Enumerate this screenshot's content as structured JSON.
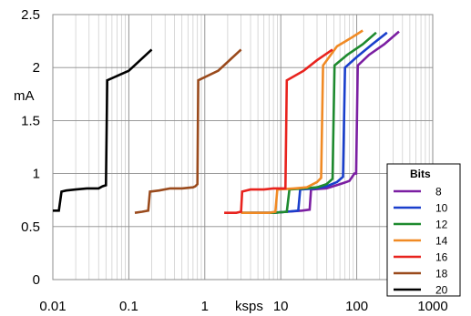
{
  "chart_data": {
    "type": "line",
    "xlabel": "ksps",
    "ylabel": "mA",
    "xscale": "log",
    "xlim": [
      0.01,
      1000
    ],
    "ylim": [
      0,
      2.5
    ],
    "x_ticks": [
      0.01,
      0.1,
      1,
      10,
      100,
      1000
    ],
    "x_tick_labels": [
      "0.01",
      "0.1",
      "1",
      "10",
      "100",
      "1000"
    ],
    "y_ticks": [
      0,
      0.5,
      1,
      1.5,
      2,
      2.5
    ],
    "y_tick_labels": [
      "0",
      "0.5",
      "1",
      "1.5",
      "2",
      "2.5"
    ],
    "grid": true,
    "legend": {
      "title": "Bits",
      "position": "bottom-right"
    },
    "series": [
      {
        "name": "8",
        "color": "#7b1fa2",
        "points": [
          [
            4,
            0.63
          ],
          [
            8,
            0.63
          ],
          [
            12,
            0.64
          ],
          [
            19,
            0.65
          ],
          [
            24,
            0.66
          ],
          [
            25,
            0.85
          ],
          [
            40,
            0.86
          ],
          [
            60,
            0.9
          ],
          [
            80,
            0.93
          ],
          [
            93,
            1.0
          ],
          [
            98,
            1.0
          ],
          [
            103,
            2.02
          ],
          [
            145,
            2.12
          ],
          [
            230,
            2.22
          ],
          [
            360,
            2.34
          ]
        ]
      },
      {
        "name": "10",
        "color": "#1a3fcc",
        "points": [
          [
            3,
            0.63
          ],
          [
            8,
            0.63
          ],
          [
            12,
            0.64
          ],
          [
            17,
            0.65
          ],
          [
            18,
            0.85
          ],
          [
            28,
            0.86
          ],
          [
            40,
            0.88
          ],
          [
            55,
            0.92
          ],
          [
            66,
            0.97
          ],
          [
            70,
            2.0
          ],
          [
            100,
            2.1
          ],
          [
            160,
            2.22
          ],
          [
            250,
            2.33
          ]
        ]
      },
      {
        "name": "12",
        "color": "#1e8a2e",
        "points": [
          [
            3,
            0.63
          ],
          [
            8,
            0.63
          ],
          [
            12,
            0.64
          ],
          [
            13,
            0.85
          ],
          [
            20,
            0.86
          ],
          [
            30,
            0.87
          ],
          [
            40,
            0.9
          ],
          [
            48,
            0.95
          ],
          [
            51,
            2.02
          ],
          [
            75,
            2.12
          ],
          [
            120,
            2.22
          ],
          [
            180,
            2.33
          ]
        ]
      },
      {
        "name": "14",
        "color": "#f08a24",
        "points": [
          [
            3,
            0.63
          ],
          [
            7,
            0.63
          ],
          [
            8.5,
            0.64
          ],
          [
            9,
            0.85
          ],
          [
            15,
            0.86
          ],
          [
            22,
            0.87
          ],
          [
            30,
            0.92
          ],
          [
            34,
            0.96
          ],
          [
            36,
            2.02
          ],
          [
            55,
            2.2
          ],
          [
            80,
            2.27
          ],
          [
            120,
            2.35
          ]
        ]
      },
      {
        "name": "16",
        "color": "#e8231e",
        "points": [
          [
            1.8,
            0.63
          ],
          [
            2.6,
            0.63
          ],
          [
            3,
            0.64
          ],
          [
            3.1,
            0.83
          ],
          [
            4,
            0.85
          ],
          [
            6,
            0.85
          ],
          [
            8,
            0.86
          ],
          [
            11,
            0.86
          ],
          [
            11.5,
            0.86
          ],
          [
            12,
            1.88
          ],
          [
            20,
            1.97
          ],
          [
            30,
            2.07
          ],
          [
            48,
            2.17
          ]
        ]
      },
      {
        "name": "18",
        "color": "#9a4a1c",
        "points": [
          [
            0.12,
            0.63
          ],
          [
            0.15,
            0.64
          ],
          [
            0.18,
            0.65
          ],
          [
            0.19,
            0.83
          ],
          [
            0.25,
            0.84
          ],
          [
            0.35,
            0.86
          ],
          [
            0.5,
            0.86
          ],
          [
            0.7,
            0.87
          ],
          [
            0.75,
            0.88
          ],
          [
            0.8,
            0.9
          ],
          [
            0.82,
            1.88
          ],
          [
            1.5,
            1.97
          ],
          [
            3,
            2.17
          ]
        ]
      },
      {
        "name": "20",
        "color": "#000000",
        "points": [
          [
            0.01,
            0.65
          ],
          [
            0.012,
            0.65
          ],
          [
            0.013,
            0.83
          ],
          [
            0.015,
            0.84
          ],
          [
            0.02,
            0.85
          ],
          [
            0.028,
            0.86
          ],
          [
            0.04,
            0.86
          ],
          [
            0.045,
            0.88
          ],
          [
            0.05,
            0.89
          ],
          [
            0.052,
            1.88
          ],
          [
            0.1,
            1.97
          ],
          [
            0.2,
            2.17
          ]
        ]
      }
    ]
  }
}
